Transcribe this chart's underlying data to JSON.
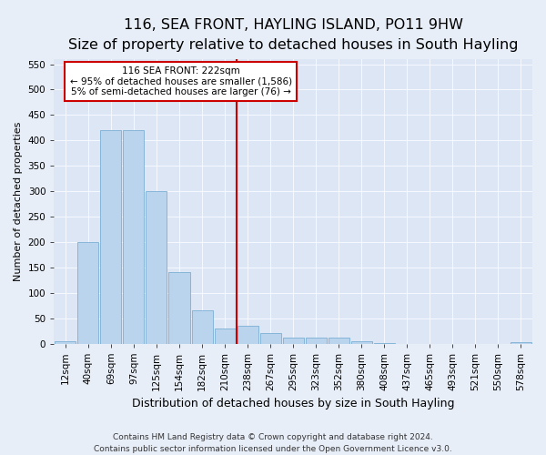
{
  "title": "116, SEA FRONT, HAYLING ISLAND, PO11 9HW",
  "subtitle": "Size of property relative to detached houses in South Hayling",
  "xlabel": "Distribution of detached houses by size in South Hayling",
  "ylabel": "Number of detached properties",
  "categories": [
    "12sqm",
    "40sqm",
    "69sqm",
    "97sqm",
    "125sqm",
    "154sqm",
    "182sqm",
    "210sqm",
    "238sqm",
    "267sqm",
    "295sqm",
    "323sqm",
    "352sqm",
    "380sqm",
    "408sqm",
    "437sqm",
    "465sqm",
    "493sqm",
    "521sqm",
    "550sqm",
    "578sqm"
  ],
  "values": [
    5,
    200,
    420,
    420,
    300,
    140,
    65,
    30,
    35,
    20,
    12,
    12,
    12,
    5,
    1,
    0,
    0,
    0,
    0,
    0,
    2
  ],
  "bar_color": "#bad4ee",
  "bar_edge_color": "#7aafd4",
  "fig_color": "#e8eef8",
  "axes_color": "#dce6f5",
  "grid_color": "#f5f8ff",
  "vline_color": "#cc0000",
  "vline_x": 7.5,
  "annotation_title": "116 SEA FRONT: 222sqm",
  "annotation_line1": "← 95% of detached houses are smaller (1,586)",
  "annotation_line2": "5% of semi-detached houses are larger (76) →",
  "annotation_box_color": "#cc0000",
  "footer_line1": "Contains HM Land Registry data © Crown copyright and database right 2024.",
  "footer_line2": "Contains public sector information licensed under the Open Government Licence v3.0.",
  "ylim": [
    0,
    560
  ],
  "yticks": [
    0,
    50,
    100,
    150,
    200,
    250,
    300,
    350,
    400,
    450,
    500,
    550
  ],
  "title_fontsize": 11.5,
  "subtitle_fontsize": 9.5,
  "xlabel_fontsize": 9,
  "ylabel_fontsize": 8,
  "tick_fontsize": 7.5,
  "annotation_fontsize": 7.5,
  "footer_fontsize": 6.5
}
